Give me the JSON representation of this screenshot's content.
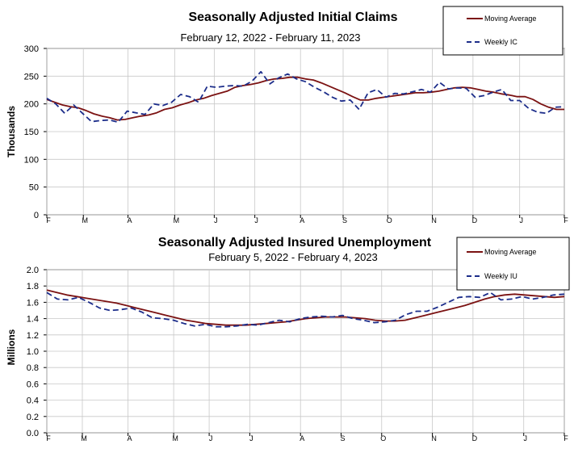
{
  "chart_data": [
    {
      "type": "line",
      "title": "Seasonally Adjusted Initial Claims",
      "subtitle": "February 12, 2022 - February 11, 2023",
      "xlabel": "",
      "ylabel": "Thousands",
      "ylim": [
        0,
        300
      ],
      "yticks": [
        0,
        50,
        100,
        150,
        200,
        250,
        300
      ],
      "ytick_labels": [
        "0",
        "50",
        "100",
        "150",
        "200",
        "250",
        "300"
      ],
      "months": [
        "F",
        "M",
        "A",
        "M",
        "J",
        "J",
        "A",
        "S",
        "O",
        "N",
        "D",
        "J",
        "F"
      ],
      "month_positions": [
        0,
        3.6,
        8.0,
        12.6,
        16.5,
        20.5,
        25.0,
        29.2,
        33.6,
        38.0,
        42.0,
        46.6,
        51.0
      ],
      "grid": true,
      "legend_position": "top-right",
      "colors": {
        "moving_average": "#7b1212",
        "weekly": "#1c2d8a"
      },
      "series": [
        {
          "name": "Moving Average",
          "style": "solid",
          "values": [
            208,
            203,
            198,
            195,
            193,
            188,
            182,
            178,
            175,
            171,
            172,
            175,
            178,
            180,
            184,
            190,
            193,
            198,
            202,
            207,
            210,
            215,
            219,
            223,
            230,
            233,
            235,
            238,
            242,
            245,
            246,
            248,
            248,
            245,
            243,
            238,
            232,
            226,
            220,
            213,
            207,
            207,
            210,
            212,
            214,
            216,
            218,
            220,
            220,
            221,
            223,
            226,
            229,
            230,
            229,
            226,
            223,
            221,
            218,
            216,
            213,
            213,
            208,
            200,
            194,
            190,
            190
          ]
        },
        {
          "name": "Weekly IC",
          "style": "dashed",
          "values": [
            210,
            200,
            183,
            198,
            183,
            168,
            170,
            171,
            167,
            187,
            184,
            181,
            200,
            197,
            203,
            217,
            213,
            203,
            232,
            230,
            232,
            233,
            232,
            241,
            258,
            236,
            247,
            254,
            245,
            240,
            230,
            222,
            212,
            205,
            207,
            190,
            220,
            226,
            212,
            219,
            218,
            222,
            226,
            221,
            239,
            227,
            229,
            228,
            212,
            215,
            221,
            226,
            206,
            206,
            192,
            185,
            183,
            194,
            195
          ]
        }
      ]
    },
    {
      "type": "line",
      "title": "Seasonally Adjusted Insured Unemployment",
      "subtitle": "February 5, 2022 - February 4, 2023",
      "xlabel": "",
      "ylabel": "Millions",
      "ylim": [
        0.0,
        2.0
      ],
      "yticks": [
        0.0,
        0.2,
        0.4,
        0.6,
        0.8,
        1.0,
        1.2,
        1.4,
        1.6,
        1.8,
        2.0
      ],
      "ytick_labels": [
        "0.0",
        "0.2",
        "0.4",
        "0.6",
        "0.8",
        "1.0",
        "1.2",
        "1.4",
        "1.6",
        "1.8",
        "2.0"
      ],
      "months": [
        "F",
        "M",
        "A",
        "M",
        "J",
        "J",
        "A",
        "S",
        "O",
        "N",
        "D",
        "J",
        "F"
      ],
      "month_positions": [
        0,
        3.5,
        8.0,
        12.5,
        16.0,
        20.0,
        25.0,
        29.0,
        33.0,
        38.0,
        42.0,
        47.0,
        51.0
      ],
      "grid": true,
      "legend_position": "top-right",
      "colors": {
        "moving_average": "#7b1212",
        "weekly": "#1c2d8a"
      },
      "series": [
        {
          "name": "Moving Average",
          "style": "solid",
          "values": [
            1.75,
            1.72,
            1.69,
            1.67,
            1.65,
            1.63,
            1.61,
            1.59,
            1.56,
            1.53,
            1.5,
            1.47,
            1.44,
            1.41,
            1.38,
            1.36,
            1.34,
            1.33,
            1.32,
            1.32,
            1.32,
            1.33,
            1.34,
            1.35,
            1.36,
            1.38,
            1.4,
            1.41,
            1.42,
            1.42,
            1.42,
            1.41,
            1.4,
            1.38,
            1.37,
            1.37,
            1.38,
            1.41,
            1.44,
            1.47,
            1.5,
            1.53,
            1.56,
            1.6,
            1.64,
            1.67,
            1.69,
            1.7,
            1.69,
            1.68,
            1.67,
            1.66,
            1.67
          ]
        },
        {
          "name": "Weekly IU",
          "style": "dashed",
          "values": [
            1.72,
            1.64,
            1.63,
            1.66,
            1.6,
            1.53,
            1.5,
            1.51,
            1.53,
            1.48,
            1.41,
            1.4,
            1.38,
            1.34,
            1.31,
            1.33,
            1.3,
            1.3,
            1.31,
            1.33,
            1.32,
            1.35,
            1.38,
            1.36,
            1.4,
            1.42,
            1.43,
            1.42,
            1.44,
            1.4,
            1.38,
            1.35,
            1.36,
            1.38,
            1.45,
            1.49,
            1.49,
            1.54,
            1.6,
            1.66,
            1.67,
            1.66,
            1.72,
            1.63,
            1.64,
            1.67,
            1.64,
            1.66,
            1.69,
            1.7
          ]
        }
      ]
    }
  ]
}
